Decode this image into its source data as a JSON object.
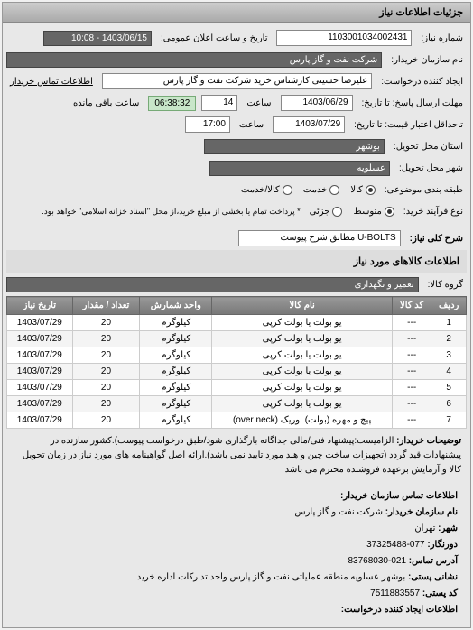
{
  "panel1": {
    "title": "جزئیات اطلاعات نیاز",
    "req_num_label": "شماره نیاز:",
    "req_num": "1103001034002431",
    "pub_date_label": "تاریخ و ساعت اعلان عمومی:",
    "pub_date": "1403/06/15 - 10:08",
    "buyer_label": "نام سازمان خریدار:",
    "buyer": "شرکت نفت و گاز پارس",
    "requester_label": "ایجاد کننده درخواست:",
    "requester": "علیرضا حسینی کارشناس خرید شرکت نفت و گاز پارس",
    "contact_label": "اطلاعات تماس خریدار",
    "deadline_reply_label": "مهلت ارسال پاسخ: تا تاریخ:",
    "deadline_reply_date": "1403/06/29",
    "hour_label": "ساعت",
    "deadline_reply_hour": "14",
    "remain_label": "ساعت باقی مانده",
    "remain_time": "06:38:32",
    "price_deadline_label": "تاحداقل اعتبار قیمت: تا تاریخ:",
    "price_deadline_date": "1403/07/29",
    "price_deadline_hour": "17:00",
    "delivery_province_label": "استان محل تحویل:",
    "delivery_province": "بوشهر",
    "delivery_city_label": "شهر محل تحویل:",
    "delivery_city": "عسلویه",
    "budget_label": "طبقه بندی موضوعی:",
    "budget_options": [
      "کالا",
      "خدمت",
      "کالا/خدمت"
    ],
    "budget_selected": 0,
    "process_label": "نوع فرآیند خرید:",
    "process_options": [
      "متوسط",
      "جزئی"
    ],
    "process_selected": 0,
    "process_note": "* پرداخت تمام یا بخشی از مبلغ خرید،از محل \"اسناد خزانه اسلامی\" خواهد بود.",
    "desc_label": "شرح کلی نیاز:",
    "desc_value": "U-BOLTS مطابق شرح پیوست"
  },
  "goods": {
    "title": "اطلاعات کالاهای مورد نیاز",
    "group_label": "گروه کالا:",
    "group_value": "تعمیر و نگهداری",
    "columns": [
      "ردیف",
      "کد کالا",
      "نام کالا",
      "واحد شمارش",
      "تعداد / مقدار",
      "تاریخ نیاز"
    ],
    "rows": [
      [
        "1",
        "---",
        "یو بولت یا بولت کرپی",
        "کیلوگرم",
        "20",
        "1403/07/29"
      ],
      [
        "2",
        "---",
        "یو بولت یا بولت کرپی",
        "کیلوگرم",
        "20",
        "1403/07/29"
      ],
      [
        "3",
        "---",
        "یو بولت یا بولت کرپی",
        "کیلوگرم",
        "20",
        "1403/07/29"
      ],
      [
        "4",
        "---",
        "یو بولت یا بولت کرپی",
        "کیلوگرم",
        "20",
        "1403/07/29"
      ],
      [
        "5",
        "---",
        "یو بولت یا بولت کرپی",
        "کیلوگرم",
        "20",
        "1403/07/29"
      ],
      [
        "6",
        "---",
        "یو بولت یا بولت کرپی",
        "کیلوگرم",
        "20",
        "1403/07/29"
      ],
      [
        "7",
        "---",
        "پیچ و مهره (بولت) اوریک (over neck)",
        "کیلوگرم",
        "20",
        "1403/07/29"
      ]
    ]
  },
  "buyer_notes": {
    "label": "توضیحات خریدار:",
    "text": "الزامیست:پیشنهاد فنی/مالی جداگانه بارگذاری شود/طبق درخواست پیوست).کشور سازنده در پیشنهادات قید گردد (تجهیزات ساخت چین و هند مورد تایید نمی باشد).ارائه اصل گواهینامه های مورد نیاز در زمان تحویل کالا و آزمایش برعهده فروشنده محترم می باشد"
  },
  "contact": {
    "title": "اطلاعات تماس سازمان خریدار:",
    "org_label": "نام سازمان خریدار:",
    "org": "شرکت نفت و گاز پارس",
    "city_label": "شهر:",
    "city": "تهران",
    "province_label": "دورنگار:",
    "province": "077-37325488",
    "site_label": "آدرس تماس:",
    "site": "021-83768030",
    "postal_label": "نشانی پستی:",
    "postal": "بوشهر عسلویه منطقه عملیاتی نفت و گاز پارس واحد تدارکات اداره خرید",
    "code_label": "کد پستی:",
    "code": "7511883557",
    "creator_label": "اطلاعات ایجاد کننده درخواست:"
  }
}
